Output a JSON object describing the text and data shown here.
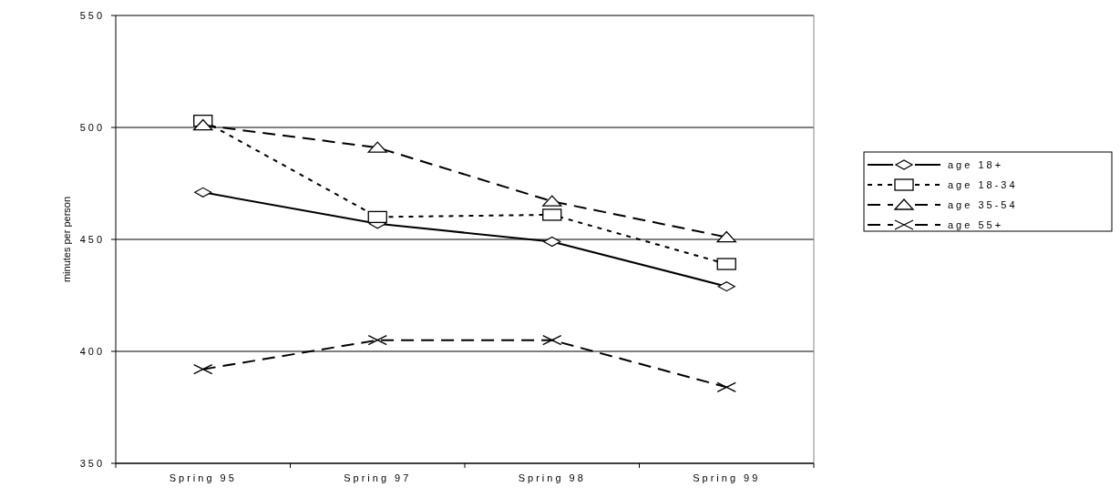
{
  "chart_data": {
    "type": "line",
    "ylabel": "minutes per person",
    "categories": [
      "Spring 95",
      "Spring 97",
      "Spring 98",
      "Spring 99"
    ],
    "series": [
      {
        "name": "age 18+",
        "color": "#000000",
        "values": [
          471,
          457,
          449,
          429
        ],
        "marker": "diamond",
        "line_style": "solid"
      },
      {
        "name": "age 18-34",
        "color": "#000000",
        "values": [
          503,
          460,
          461,
          439
        ],
        "marker": "square",
        "line_style": "dotted"
      },
      {
        "name": "age 35-54",
        "color": "#000000",
        "values": [
          501,
          491,
          467,
          451
        ],
        "marker": "triangle",
        "line_style": "dashed"
      },
      {
        "name": "age 55+",
        "color": "#000000",
        "values": [
          392,
          405,
          405,
          384
        ],
        "marker": "cross",
        "line_style": "dashed"
      }
    ],
    "ylim": [
      350,
      550
    ],
    "yticks": [
      350,
      400,
      450,
      500,
      550
    ],
    "grid": "y",
    "legend": "right"
  }
}
